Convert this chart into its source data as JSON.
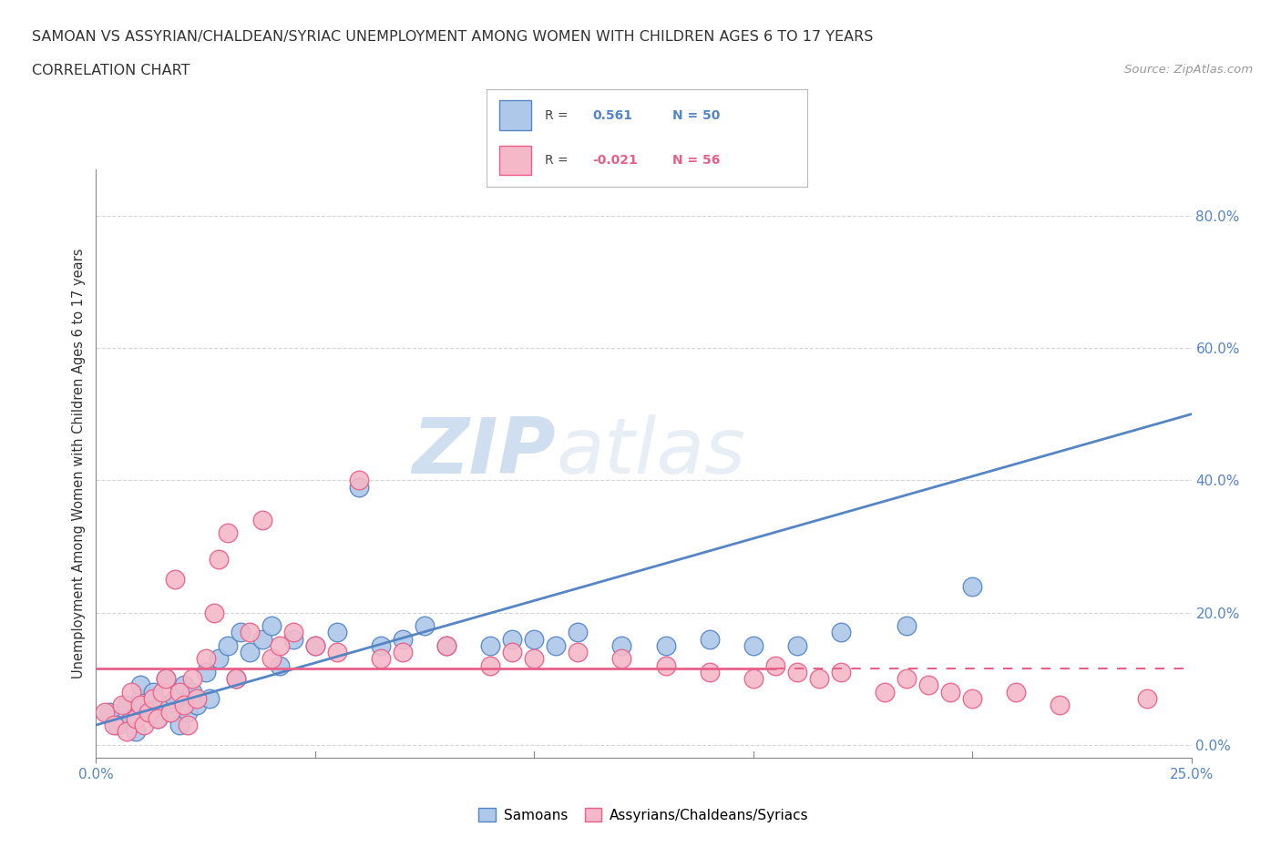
{
  "title_line1": "SAMOAN VS ASSYRIAN/CHALDEAN/SYRIAC UNEMPLOYMENT AMONG WOMEN WITH CHILDREN AGES 6 TO 17 YEARS",
  "title_line2": "CORRELATION CHART",
  "source_text": "Source: ZipAtlas.com",
  "ylabel": "Unemployment Among Women with Children Ages 6 to 17 years",
  "xlim": [
    0.0,
    0.25
  ],
  "ylim": [
    -0.02,
    0.87
  ],
  "ytick_labels": [
    "0.0%",
    "20.0%",
    "40.0%",
    "60.0%",
    "80.0%"
  ],
  "ytick_values": [
    0.0,
    0.2,
    0.4,
    0.6,
    0.8
  ],
  "xtick_labels": [
    "0.0%",
    "25.0%"
  ],
  "xtick_values": [
    0.0,
    0.25
  ],
  "samoan_R": "0.561",
  "samoan_N": "50",
  "assyrian_R": "-0.021",
  "assyrian_N": "56",
  "samoan_color": "#adc8e8",
  "assyrian_color": "#f5b8c8",
  "samoan_line_color": "#5585c5",
  "assyrian_line_color": "#e8608a",
  "watermark_color": "#d0dff0",
  "watermark_text": "ZIPatlas",
  "grid_color": "#cccccc",
  "background_color": "#ffffff",
  "title_color": "#333333",
  "axis_color": "#888888",
  "tick_color": "#5585c5",
  "samoan_points_x": [
    0.003,
    0.005,
    0.007,
    0.008,
    0.009,
    0.01,
    0.01,
    0.012,
    0.013,
    0.014,
    0.015,
    0.016,
    0.017,
    0.018,
    0.019,
    0.02,
    0.021,
    0.022,
    0.023,
    0.025,
    0.026,
    0.028,
    0.03,
    0.032,
    0.033,
    0.035,
    0.038,
    0.04,
    0.042,
    0.045,
    0.05,
    0.055,
    0.06,
    0.065,
    0.07,
    0.075,
    0.08,
    0.09,
    0.095,
    0.1,
    0.105,
    0.11,
    0.12,
    0.13,
    0.14,
    0.15,
    0.16,
    0.17,
    0.185,
    0.2
  ],
  "samoan_points_y": [
    0.05,
    0.03,
    0.06,
    0.04,
    0.02,
    0.07,
    0.09,
    0.05,
    0.08,
    0.04,
    0.06,
    0.1,
    0.05,
    0.07,
    0.03,
    0.09,
    0.05,
    0.08,
    0.06,
    0.11,
    0.07,
    0.13,
    0.15,
    0.1,
    0.17,
    0.14,
    0.16,
    0.18,
    0.12,
    0.16,
    0.15,
    0.17,
    0.39,
    0.15,
    0.16,
    0.18,
    0.15,
    0.15,
    0.16,
    0.16,
    0.15,
    0.17,
    0.15,
    0.15,
    0.16,
    0.15,
    0.15,
    0.17,
    0.18,
    0.24
  ],
  "assyrian_points_x": [
    0.002,
    0.004,
    0.006,
    0.007,
    0.008,
    0.009,
    0.01,
    0.011,
    0.012,
    0.013,
    0.014,
    0.015,
    0.016,
    0.017,
    0.018,
    0.019,
    0.02,
    0.021,
    0.022,
    0.023,
    0.025,
    0.027,
    0.028,
    0.03,
    0.032,
    0.035,
    0.038,
    0.04,
    0.042,
    0.045,
    0.05,
    0.055,
    0.06,
    0.065,
    0.07,
    0.08,
    0.09,
    0.095,
    0.1,
    0.11,
    0.12,
    0.13,
    0.14,
    0.15,
    0.155,
    0.16,
    0.165,
    0.17,
    0.18,
    0.185,
    0.19,
    0.195,
    0.2,
    0.21,
    0.22,
    0.24
  ],
  "assyrian_points_y": [
    0.05,
    0.03,
    0.06,
    0.02,
    0.08,
    0.04,
    0.06,
    0.03,
    0.05,
    0.07,
    0.04,
    0.08,
    0.1,
    0.05,
    0.25,
    0.08,
    0.06,
    0.03,
    0.1,
    0.07,
    0.13,
    0.2,
    0.28,
    0.32,
    0.1,
    0.17,
    0.34,
    0.13,
    0.15,
    0.17,
    0.15,
    0.14,
    0.4,
    0.13,
    0.14,
    0.15,
    0.12,
    0.14,
    0.13,
    0.14,
    0.13,
    0.12,
    0.11,
    0.1,
    0.12,
    0.11,
    0.1,
    0.11,
    0.08,
    0.1,
    0.09,
    0.08,
    0.07,
    0.08,
    0.06,
    0.07
  ],
  "samoan_line_x0": 0.0,
  "samoan_line_y0": 0.03,
  "samoan_line_x1": 0.25,
  "samoan_line_y1": 0.5,
  "assyrian_line_solid_x0": 0.0,
  "assyrian_line_solid_y0": 0.115,
  "assyrian_line_solid_x1": 0.155,
  "assyrian_line_solid_y1": 0.115,
  "assyrian_line_dash_x0": 0.155,
  "assyrian_line_dash_y0": 0.115,
  "assyrian_line_dash_x1": 0.25,
  "assyrian_line_dash_y1": 0.115
}
